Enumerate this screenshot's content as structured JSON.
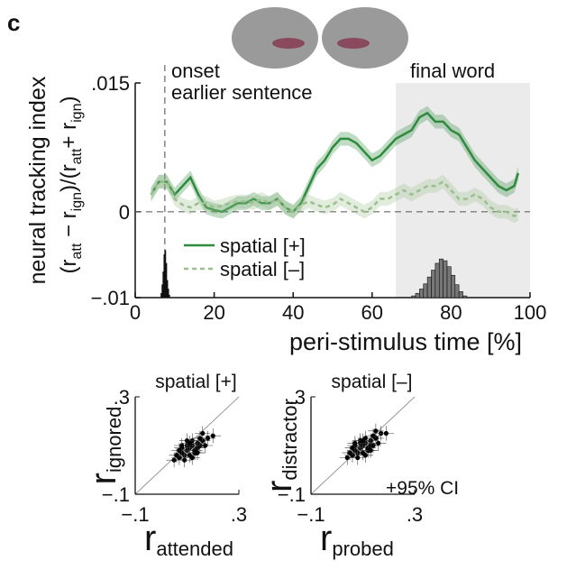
{
  "panel_label": "c",
  "chart_data": [
    {
      "type": "line",
      "ylabel": "neural tracking index",
      "ylabel_formula": [
        "(r",
        "att",
        " − r",
        "ign",
        ")/(r",
        "att",
        "+ r",
        "ign",
        ")"
      ],
      "xlabel": "peri-stimulus time [%]",
      "annotations": [
        "onset",
        "earlier sentence",
        "final word"
      ],
      "onset_x": 7.5,
      "shaded_xrange": [
        66,
        100
      ],
      "xlim": [
        0,
        100
      ],
      "xticks": [
        0,
        20,
        40,
        60,
        80,
        100
      ],
      "ylim": [
        -0.01,
        0.015
      ],
      "yticks": [
        {
          "value": -0.01,
          "label": "−.01"
        },
        0,
        {
          "value": 0.015,
          "label": ".015"
        }
      ],
      "x": [
        4,
        6,
        8,
        10,
        12,
        14,
        16,
        18,
        20,
        22,
        24,
        26,
        28,
        30,
        32,
        34,
        36,
        38,
        40,
        42,
        44,
        46,
        48,
        50,
        52,
        54,
        56,
        58,
        60,
        62,
        64,
        66,
        68,
        70,
        72,
        74,
        76,
        78,
        80,
        82,
        84,
        86,
        88,
        90,
        92,
        94,
        96,
        97
      ],
      "series": [
        {
          "name": "spatial [+]",
          "color": "#2e8b3e",
          "dash": false,
          "error": 0.0008,
          "values": [
            0.002,
            0.0035,
            0.0035,
            0.002,
            0.003,
            0.004,
            0.002,
            0.0005,
            0.0002,
            0.0,
            0.0005,
            0.001,
            0.001,
            0.0015,
            0.001,
            0.001,
            0.0015,
            0.0005,
            0.0,
            0.001,
            0.003,
            0.005,
            0.006,
            0.0075,
            0.0085,
            0.0085,
            0.008,
            0.007,
            0.006,
            0.0065,
            0.0075,
            0.0085,
            0.009,
            0.0095,
            0.011,
            0.0115,
            0.0105,
            0.0105,
            0.0095,
            0.009,
            0.0075,
            0.006,
            0.005,
            0.004,
            0.003,
            0.0025,
            0.003,
            0.0045
          ]
        },
        {
          "name": "spatial [–]",
          "color": "#9bbf8f",
          "dash": true,
          "error": 0.0008,
          "values": [
            0.002,
            0.0035,
            0.0035,
            0.0015,
            0.0008,
            0.0005,
            0.001,
            0.001,
            0.0005,
            0.0007,
            0.001,
            0.0012,
            0.0012,
            0.001,
            0.0015,
            0.001,
            0.0015,
            0.0005,
            0.0,
            0.0008,
            0.0012,
            0.0008,
            0.0005,
            0.0008,
            0.0015,
            0.001,
            0.0005,
            0.0,
            0.0005,
            0.0015,
            0.0015,
            0.002,
            0.0025,
            0.002,
            0.0025,
            0.003,
            0.003,
            0.0035,
            0.0025,
            0.0015,
            0.0015,
            0.002,
            0.0015,
            0.0005,
            0.0,
            0.0,
            -0.0005,
            -0.0003
          ]
        }
      ],
      "histograms": [
        {
          "color": "#111111",
          "bins": [
            6.5,
            6.75,
            7,
            7.25,
            7.5,
            7.75,
            8,
            8.25,
            8.5,
            8.75
          ],
          "counts": [
            0.0005,
            0.0015,
            0.003,
            0.005,
            0.0055,
            0.004,
            0.002,
            0.001,
            0.0003
          ]
        },
        {
          "color": "#777777",
          "bins": [
            70,
            71,
            72,
            73,
            74,
            75,
            76,
            77,
            78,
            79,
            80,
            81,
            82,
            83,
            84
          ],
          "counts": [
            0.0002,
            0.0005,
            0.001,
            0.0016,
            0.0024,
            0.0032,
            0.004,
            0.0045,
            0.0043,
            0.0036,
            0.0026,
            0.0015,
            0.0007,
            0.0002
          ]
        }
      ]
    },
    {
      "type": "scatter",
      "title": "spatial [+]",
      "title_color": "#2e8b3e",
      "xlabel": [
        "r",
        "attended"
      ],
      "xlabel_color": "#2e8b3e",
      "ylabel": [
        "r",
        "ignored"
      ],
      "ylabel_color": "#f5a623",
      "xlim": [
        -0.1,
        0.3
      ],
      "ylim": [
        -0.1,
        0.3
      ],
      "xticks": [
        {
          "value": -0.1,
          "label": "−.1"
        },
        {
          "value": 0.3,
          "label": ".3"
        }
      ],
      "yticks": [
        {
          "value": -0.1,
          "label": "−.1"
        },
        {
          "value": 0.3,
          "label": ".3"
        }
      ],
      "ci": 0.03,
      "x": [
        0.05,
        0.07,
        0.08,
        0.09,
        0.1,
        0.11,
        0.12,
        0.13,
        0.14,
        0.15,
        0.06,
        0.08,
        0.1,
        0.12,
        0.14,
        0.16,
        0.18,
        0.09,
        0.11,
        0.13,
        0.07,
        0.1,
        0.12,
        0.15,
        0.17,
        0.2,
        0.08,
        0.11,
        0.14,
        0.16
      ],
      "y": [
        0.04,
        0.05,
        0.07,
        0.06,
        0.08,
        0.09,
        0.1,
        0.08,
        0.11,
        0.1,
        0.06,
        0.09,
        0.1,
        0.12,
        0.09,
        0.12,
        0.13,
        0.04,
        0.06,
        0.07,
        0.08,
        0.12,
        0.05,
        0.13,
        0.1,
        0.14,
        0.1,
        0.11,
        0.07,
        0.15
      ]
    },
    {
      "type": "scatter",
      "title": "spatial [–]",
      "title_color": "#9bbf8f",
      "xlabel": [
        "r",
        "probed"
      ],
      "xlabel_color": "#2e8b3e",
      "ylabel": [
        "r",
        "distractor"
      ],
      "ylabel_color": "#f5a623",
      "xlim": [
        -0.1,
        0.3
      ],
      "ylim": [
        -0.1,
        0.3
      ],
      "xticks": [
        {
          "value": -0.1,
          "label": "−.1"
        },
        {
          "value": 0.3,
          "label": ".3"
        }
      ],
      "yticks": [
        {
          "value": -0.1,
          "label": "−.1"
        },
        {
          "value": 0.3,
          "label": ".3"
        }
      ],
      "ci": 0.03,
      "ci_label": "+95% CI",
      "x": [
        0.04,
        0.06,
        0.07,
        0.08,
        0.09,
        0.1,
        0.11,
        0.12,
        0.13,
        0.14,
        0.05,
        0.07,
        0.09,
        0.11,
        0.13,
        0.15,
        0.17,
        0.08,
        0.1,
        0.12,
        0.06,
        0.09,
        0.11,
        0.14,
        0.16,
        0.19,
        0.07,
        0.1,
        0.13,
        0.15
      ],
      "y": [
        0.05,
        0.06,
        0.08,
        0.07,
        0.09,
        0.1,
        0.11,
        0.09,
        0.12,
        0.1,
        0.07,
        0.1,
        0.11,
        0.13,
        0.1,
        0.13,
        0.15,
        0.05,
        0.07,
        0.08,
        0.09,
        0.12,
        0.06,
        0.14,
        0.11,
        0.15,
        0.11,
        0.12,
        0.08,
        0.16
      ]
    }
  ]
}
